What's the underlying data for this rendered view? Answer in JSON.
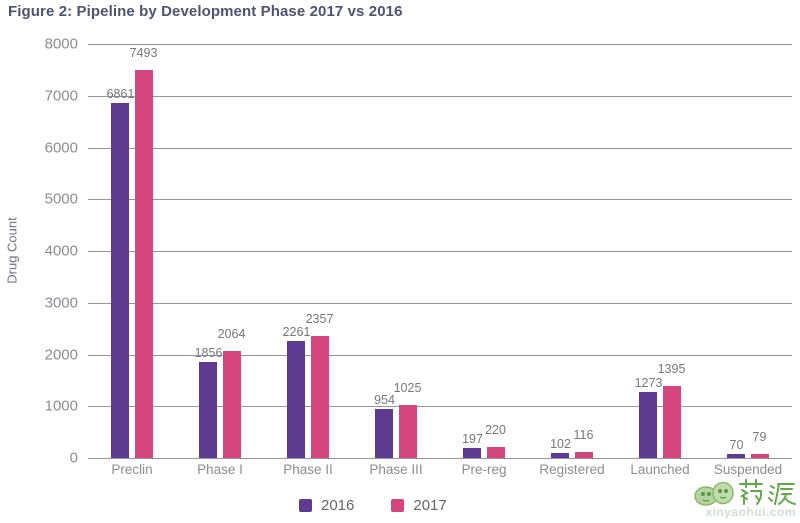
{
  "figure": {
    "title": "Figure 2: Pipeline by Development Phase 2017 vs 2016"
  },
  "chart_data": {
    "type": "bar",
    "title": "Figure 2: Pipeline by Development Phase 2017 vs 2016",
    "xlabel": "",
    "ylabel": "Drug Count",
    "categories": [
      "Preclin",
      "Phase I",
      "Phase II",
      "Phase III",
      "Pre-reg",
      "Registered",
      "Launched",
      "Suspended"
    ],
    "series": [
      {
        "name": "2016",
        "color": "#5e3a91",
        "values": [
          6861,
          1856,
          2261,
          954,
          197,
          102,
          1273,
          70
        ]
      },
      {
        "name": "2017",
        "color": "#d5467f",
        "values": [
          7493,
          2064,
          2357,
          1025,
          220,
          116,
          1395,
          79
        ]
      }
    ],
    "ylim": [
      0,
      8000
    ],
    "ytick_step": 1000,
    "grid": true,
    "legend_position": "bottom-center",
    "data_labels": true
  },
  "watermark": {
    "brand": "药渡",
    "sub": "xinyaohui.com"
  },
  "colors": {
    "title_text": "#4d5370",
    "axis_text": "#8c8c93",
    "value_label_text": "#77777d",
    "gridline": "#97979b",
    "legend_text": "#64646f",
    "watermark_green": "#55a13c"
  }
}
